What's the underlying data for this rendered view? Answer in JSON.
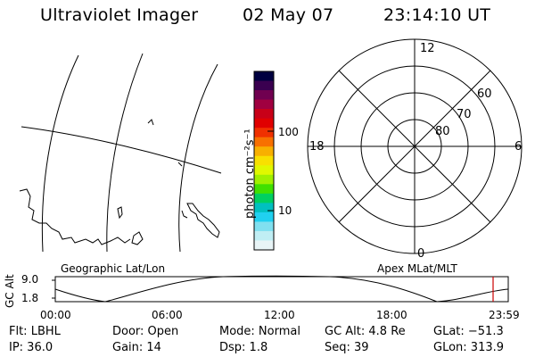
{
  "header": {
    "instrument": "Ultraviolet Imager",
    "date": "02 May 07",
    "time": "23:14:10 UT"
  },
  "colorbar": {
    "unit_label": "photon cm⁻²s⁻¹",
    "scale": "log",
    "ticks": [
      "100",
      "10"
    ],
    "colors": [
      "#000040",
      "#3a0050",
      "#700050",
      "#a00040",
      "#c80018",
      "#e00000",
      "#f03000",
      "#f87000",
      "#f8b000",
      "#f8e000",
      "#e0f800",
      "#a0f000",
      "#40e000",
      "#00d060",
      "#00c0c0",
      "#20d0f0",
      "#80e0f0",
      "#c0eef4",
      "#e8f4f6"
    ]
  },
  "polar": {
    "mlt_labels": [
      "12",
      "18",
      "6",
      "0"
    ],
    "lat_labels": [
      "60",
      "70",
      "80"
    ]
  },
  "altitude_plot": {
    "ylabel": "GC Alt",
    "yticks": [
      "9.0",
      "1.8"
    ],
    "left_title": "Geographic Lat/Lon",
    "right_title": "Apex MLat/MLT",
    "xticks": [
      "00:00",
      "06:00",
      "12:00",
      "18:00",
      "23:59"
    ],
    "marker_color": "#cc0000"
  },
  "footer": {
    "flt": "Flt: LBHL",
    "ip": "IP: 36.0",
    "door": "Door: Open",
    "gain": "Gain: 14",
    "mode": "Mode: Normal",
    "dsp": "Dsp:    1.8",
    "gc_alt": "GC Alt: 4.8 Re",
    "seq": "Seq: 39",
    "glat": "GLat: −51.3",
    "glon": "GLon: 313.9"
  }
}
